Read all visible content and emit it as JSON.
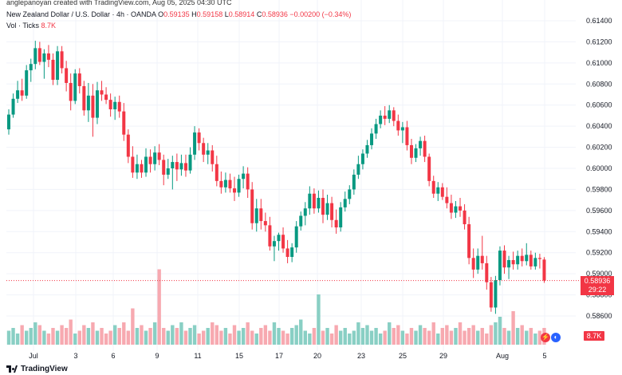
{
  "header": {
    "attribution": "anglepanoyan created with TradingView.com, Aug 05, 2025 04:30 UTC",
    "symbol": "New Zealand Dollar / U.S. Dollar · 4h · OANDA",
    "o_label": "O",
    "o_value": "0.59135",
    "h_label": "H",
    "h_value": "0.59158",
    "l_label": "L",
    "l_value": "0.58914",
    "c_label": "C",
    "c_value": "0.58936",
    "change": "−0.00200 (−0.34%)",
    "vol_label": "Vol · Ticks",
    "vol_value": "8.7K"
  },
  "price_tag": {
    "price": "0.58936",
    "countdown": "29:22"
  },
  "volume_tag": "8.7K",
  "logo_text": "TradingView",
  "colors": {
    "up": "#089981",
    "down": "#f23645",
    "up_vol": "#89cfc4",
    "down_vol": "#f7a9b0",
    "grid": "#f0f3fa"
  },
  "chart_data": {
    "type": "candlestick",
    "y_ticks": [
      "0.61400",
      "0.61200",
      "0.61000",
      "0.60800",
      "0.60600",
      "0.60400",
      "0.60200",
      "0.60000",
      "0.59800",
      "0.59600",
      "0.59400",
      "0.59200",
      "0.59000",
      "0.58800",
      "0.58600"
    ],
    "ylim": [
      0.585,
      0.615
    ],
    "x_tick_labels": [
      "Jul",
      "3",
      "6",
      "9",
      "11",
      "15",
      "17",
      "20",
      "23",
      "25",
      "29",
      "Aug",
      "5"
    ],
    "last_price": 0.58936,
    "candles": [
      {
        "o": 0.6037,
        "h": 0.6056,
        "l": 0.6032,
        "c": 0.6051
      },
      {
        "o": 0.6051,
        "h": 0.6071,
        "l": 0.6048,
        "c": 0.6066
      },
      {
        "o": 0.6066,
        "h": 0.6083,
        "l": 0.6062,
        "c": 0.6074
      },
      {
        "o": 0.6074,
        "h": 0.6085,
        "l": 0.6064,
        "c": 0.6069
      },
      {
        "o": 0.6069,
        "h": 0.6098,
        "l": 0.6066,
        "c": 0.6093
      },
      {
        "o": 0.6093,
        "h": 0.6104,
        "l": 0.6082,
        "c": 0.6099
      },
      {
        "o": 0.6099,
        "h": 0.6121,
        "l": 0.6094,
        "c": 0.6114
      },
      {
        "o": 0.6114,
        "h": 0.612,
        "l": 0.6098,
        "c": 0.6101
      },
      {
        "o": 0.6101,
        "h": 0.6113,
        "l": 0.6085,
        "c": 0.6109
      },
      {
        "o": 0.6109,
        "h": 0.6117,
        "l": 0.6096,
        "c": 0.6103
      },
      {
        "o": 0.6103,
        "h": 0.6109,
        "l": 0.6079,
        "c": 0.6084
      },
      {
        "o": 0.6084,
        "h": 0.6116,
        "l": 0.6079,
        "c": 0.6111
      },
      {
        "o": 0.6111,
        "h": 0.6116,
        "l": 0.609,
        "c": 0.6095
      },
      {
        "o": 0.6095,
        "h": 0.6102,
        "l": 0.6073,
        "c": 0.6081
      },
      {
        "o": 0.6081,
        "h": 0.609,
        "l": 0.6055,
        "c": 0.6064
      },
      {
        "o": 0.6064,
        "h": 0.6094,
        "l": 0.6061,
        "c": 0.609
      },
      {
        "o": 0.609,
        "h": 0.6095,
        "l": 0.6071,
        "c": 0.6078
      },
      {
        "o": 0.6078,
        "h": 0.6083,
        "l": 0.605,
        "c": 0.6055
      },
      {
        "o": 0.6055,
        "h": 0.6081,
        "l": 0.6044,
        "c": 0.6069
      },
      {
        "o": 0.6069,
        "h": 0.608,
        "l": 0.603,
        "c": 0.6048
      },
      {
        "o": 0.6048,
        "h": 0.6082,
        "l": 0.6042,
        "c": 0.6074
      },
      {
        "o": 0.6074,
        "h": 0.6083,
        "l": 0.6064,
        "c": 0.607
      },
      {
        "o": 0.607,
        "h": 0.6077,
        "l": 0.6061,
        "c": 0.6065
      },
      {
        "o": 0.6065,
        "h": 0.6071,
        "l": 0.6049,
        "c": 0.6056
      },
      {
        "o": 0.6056,
        "h": 0.6068,
        "l": 0.6046,
        "c": 0.6063
      },
      {
        "o": 0.6063,
        "h": 0.6069,
        "l": 0.6048,
        "c": 0.6054
      },
      {
        "o": 0.6054,
        "h": 0.6062,
        "l": 0.6026,
        "c": 0.6032
      },
      {
        "o": 0.6032,
        "h": 0.6037,
        "l": 0.6005,
        "c": 0.6011
      },
      {
        "o": 0.6011,
        "h": 0.6021,
        "l": 0.5991,
        "c": 0.5996
      },
      {
        "o": 0.5996,
        "h": 0.6013,
        "l": 0.599,
        "c": 0.6004
      },
      {
        "o": 0.6004,
        "h": 0.6008,
        "l": 0.5991,
        "c": 0.5996
      },
      {
        "o": 0.5996,
        "h": 0.6019,
        "l": 0.5992,
        "c": 0.6011
      },
      {
        "o": 0.6011,
        "h": 0.6018,
        "l": 0.5996,
        "c": 0.6004
      },
      {
        "o": 0.6004,
        "h": 0.6021,
        "l": 0.5998,
        "c": 0.6015
      },
      {
        "o": 0.6015,
        "h": 0.6023,
        "l": 0.6003,
        "c": 0.6008
      },
      {
        "o": 0.6008,
        "h": 0.6013,
        "l": 0.5984,
        "c": 0.5994
      },
      {
        "o": 0.5994,
        "h": 0.6009,
        "l": 0.599,
        "c": 0.6
      },
      {
        "o": 0.6,
        "h": 0.6012,
        "l": 0.598,
        "c": 0.6006
      },
      {
        "o": 0.6006,
        "h": 0.6014,
        "l": 0.5988,
        "c": 0.5999
      },
      {
        "o": 0.5999,
        "h": 0.6013,
        "l": 0.5993,
        "c": 0.6005
      },
      {
        "o": 0.6005,
        "h": 0.6013,
        "l": 0.5992,
        "c": 0.5998
      },
      {
        "o": 0.5998,
        "h": 0.602,
        "l": 0.5995,
        "c": 0.6013
      },
      {
        "o": 0.6013,
        "h": 0.604,
        "l": 0.6008,
        "c": 0.6034
      },
      {
        "o": 0.6034,
        "h": 0.6038,
        "l": 0.6017,
        "c": 0.6024
      },
      {
        "o": 0.6024,
        "h": 0.6029,
        "l": 0.6006,
        "c": 0.6013
      },
      {
        "o": 0.6013,
        "h": 0.6024,
        "l": 0.6004,
        "c": 0.6017
      },
      {
        "o": 0.6017,
        "h": 0.6022,
        "l": 0.5997,
        "c": 0.6004
      },
      {
        "o": 0.6004,
        "h": 0.6012,
        "l": 0.5983,
        "c": 0.5988
      },
      {
        "o": 0.5988,
        "h": 0.5997,
        "l": 0.5976,
        "c": 0.5982
      },
      {
        "o": 0.5982,
        "h": 0.5996,
        "l": 0.5977,
        "c": 0.5989
      },
      {
        "o": 0.5989,
        "h": 0.5995,
        "l": 0.5977,
        "c": 0.5981
      },
      {
        "o": 0.5981,
        "h": 0.5992,
        "l": 0.5969,
        "c": 0.5977
      },
      {
        "o": 0.5977,
        "h": 0.5994,
        "l": 0.5973,
        "c": 0.599
      },
      {
        "o": 0.599,
        "h": 0.6002,
        "l": 0.5981,
        "c": 0.5995
      },
      {
        "o": 0.5995,
        "h": 0.6001,
        "l": 0.5972,
        "c": 0.598
      },
      {
        "o": 0.598,
        "h": 0.5987,
        "l": 0.5942,
        "c": 0.5948
      },
      {
        "o": 0.5948,
        "h": 0.5971,
        "l": 0.594,
        "c": 0.5962
      },
      {
        "o": 0.5962,
        "h": 0.5971,
        "l": 0.5942,
        "c": 0.595
      },
      {
        "o": 0.595,
        "h": 0.5958,
        "l": 0.594,
        "c": 0.5946
      },
      {
        "o": 0.5946,
        "h": 0.5954,
        "l": 0.5922,
        "c": 0.5926
      },
      {
        "o": 0.5926,
        "h": 0.5936,
        "l": 0.5912,
        "c": 0.5931
      },
      {
        "o": 0.5931,
        "h": 0.5939,
        "l": 0.5922,
        "c": 0.5937
      },
      {
        "o": 0.5937,
        "h": 0.5944,
        "l": 0.592,
        "c": 0.5924
      },
      {
        "o": 0.5924,
        "h": 0.5932,
        "l": 0.591,
        "c": 0.5916
      },
      {
        "o": 0.5916,
        "h": 0.5929,
        "l": 0.5911,
        "c": 0.5925
      },
      {
        "o": 0.5925,
        "h": 0.595,
        "l": 0.592,
        "c": 0.5945
      },
      {
        "o": 0.5945,
        "h": 0.5959,
        "l": 0.5941,
        "c": 0.5955
      },
      {
        "o": 0.5955,
        "h": 0.5968,
        "l": 0.5946,
        "c": 0.5962
      },
      {
        "o": 0.5962,
        "h": 0.5983,
        "l": 0.5956,
        "c": 0.5976
      },
      {
        "o": 0.5976,
        "h": 0.5981,
        "l": 0.5957,
        "c": 0.5962
      },
      {
        "o": 0.5962,
        "h": 0.5979,
        "l": 0.5958,
        "c": 0.5972
      },
      {
        "o": 0.5972,
        "h": 0.598,
        "l": 0.5948,
        "c": 0.5956
      },
      {
        "o": 0.5956,
        "h": 0.5975,
        "l": 0.5951,
        "c": 0.5967
      },
      {
        "o": 0.5967,
        "h": 0.5973,
        "l": 0.5944,
        "c": 0.5951
      },
      {
        "o": 0.5951,
        "h": 0.5961,
        "l": 0.5938,
        "c": 0.5944
      },
      {
        "o": 0.5944,
        "h": 0.5968,
        "l": 0.594,
        "c": 0.5963
      },
      {
        "o": 0.5963,
        "h": 0.5978,
        "l": 0.5959,
        "c": 0.5971
      },
      {
        "o": 0.5971,
        "h": 0.5984,
        "l": 0.5966,
        "c": 0.598
      },
      {
        "o": 0.598,
        "h": 0.5999,
        "l": 0.5975,
        "c": 0.5994
      },
      {
        "o": 0.5994,
        "h": 0.6012,
        "l": 0.599,
        "c": 0.6004
      },
      {
        "o": 0.6004,
        "h": 0.6018,
        "l": 0.5999,
        "c": 0.6014
      },
      {
        "o": 0.6014,
        "h": 0.6027,
        "l": 0.601,
        "c": 0.6022
      },
      {
        "o": 0.6022,
        "h": 0.6038,
        "l": 0.6018,
        "c": 0.6033
      },
      {
        "o": 0.6033,
        "h": 0.6047,
        "l": 0.6028,
        "c": 0.6042
      },
      {
        "o": 0.6042,
        "h": 0.6055,
        "l": 0.6038,
        "c": 0.605
      },
      {
        "o": 0.605,
        "h": 0.6059,
        "l": 0.6041,
        "c": 0.6047
      },
      {
        "o": 0.6047,
        "h": 0.606,
        "l": 0.6043,
        "c": 0.6055
      },
      {
        "o": 0.6055,
        "h": 0.6058,
        "l": 0.604,
        "c": 0.6045
      },
      {
        "o": 0.6045,
        "h": 0.6051,
        "l": 0.6031,
        "c": 0.6036
      },
      {
        "o": 0.6036,
        "h": 0.6044,
        "l": 0.6024,
        "c": 0.6039
      },
      {
        "o": 0.6039,
        "h": 0.6045,
        "l": 0.6017,
        "c": 0.6022
      },
      {
        "o": 0.6022,
        "h": 0.6028,
        "l": 0.6004,
        "c": 0.601
      },
      {
        "o": 0.601,
        "h": 0.6023,
        "l": 0.6006,
        "c": 0.6019
      },
      {
        "o": 0.6019,
        "h": 0.603,
        "l": 0.6012,
        "c": 0.6026
      },
      {
        "o": 0.6026,
        "h": 0.6031,
        "l": 0.6006,
        "c": 0.6011
      },
      {
        "o": 0.6011,
        "h": 0.6014,
        "l": 0.5983,
        "c": 0.5988
      },
      {
        "o": 0.5988,
        "h": 0.5993,
        "l": 0.5972,
        "c": 0.5976
      },
      {
        "o": 0.5976,
        "h": 0.5987,
        "l": 0.5969,
        "c": 0.5982
      },
      {
        "o": 0.5982,
        "h": 0.5986,
        "l": 0.597,
        "c": 0.5973
      },
      {
        "o": 0.5973,
        "h": 0.5982,
        "l": 0.5962,
        "c": 0.5967
      },
      {
        "o": 0.5967,
        "h": 0.5975,
        "l": 0.5952,
        "c": 0.5958
      },
      {
        "o": 0.5958,
        "h": 0.5969,
        "l": 0.5953,
        "c": 0.5964
      },
      {
        "o": 0.5964,
        "h": 0.5972,
        "l": 0.5954,
        "c": 0.596
      },
      {
        "o": 0.596,
        "h": 0.5966,
        "l": 0.5942,
        "c": 0.5947
      },
      {
        "o": 0.5947,
        "h": 0.5954,
        "l": 0.5909,
        "c": 0.5915
      },
      {
        "o": 0.5915,
        "h": 0.5924,
        "l": 0.5896,
        "c": 0.5904
      },
      {
        "o": 0.5904,
        "h": 0.5924,
        "l": 0.59,
        "c": 0.5917
      },
      {
        "o": 0.5917,
        "h": 0.5936,
        "l": 0.5904,
        "c": 0.591
      },
      {
        "o": 0.591,
        "h": 0.5917,
        "l": 0.5885,
        "c": 0.5892
      },
      {
        "o": 0.5892,
        "h": 0.5897,
        "l": 0.5864,
        "c": 0.5868
      },
      {
        "o": 0.5868,
        "h": 0.5898,
        "l": 0.5862,
        "c": 0.5894
      },
      {
        "o": 0.5894,
        "h": 0.5926,
        "l": 0.5889,
        "c": 0.5922
      },
      {
        "o": 0.5922,
        "h": 0.5927,
        "l": 0.59,
        "c": 0.5906
      },
      {
        "o": 0.5906,
        "h": 0.5917,
        "l": 0.5895,
        "c": 0.5913
      },
      {
        "o": 0.5913,
        "h": 0.5921,
        "l": 0.5904,
        "c": 0.5909
      },
      {
        "o": 0.5909,
        "h": 0.5922,
        "l": 0.5904,
        "c": 0.5917
      },
      {
        "o": 0.5917,
        "h": 0.5924,
        "l": 0.5907,
        "c": 0.5912
      },
      {
        "o": 0.5912,
        "h": 0.5929,
        "l": 0.5908,
        "c": 0.5918
      },
      {
        "o": 0.5918,
        "h": 0.5922,
        "l": 0.5904,
        "c": 0.5907
      },
      {
        "o": 0.5907,
        "h": 0.592,
        "l": 0.5904,
        "c": 0.5915
      },
      {
        "o": 0.5915,
        "h": 0.5919,
        "l": 0.5905,
        "c": 0.5914
      },
      {
        "o": 0.59135,
        "h": 0.59158,
        "l": 0.58914,
        "c": 0.58936
      }
    ],
    "volume": [
      5,
      6,
      4,
      7,
      5,
      6,
      8,
      7,
      5,
      4,
      6,
      5,
      7,
      6,
      9,
      4,
      5,
      7,
      6,
      8,
      5,
      6,
      4,
      5,
      7,
      6,
      8,
      5,
      13,
      6,
      7,
      5,
      6,
      8,
      27,
      6,
      5,
      7,
      6,
      8,
      5,
      6,
      7,
      4,
      5,
      6,
      8,
      7,
      5,
      6,
      4,
      7,
      5,
      6,
      8,
      5,
      4,
      6,
      7,
      5,
      8,
      6,
      5,
      4,
      6,
      7,
      9,
      5,
      4,
      6,
      18,
      5,
      6,
      4,
      7,
      5,
      6,
      4,
      5,
      8,
      6,
      7,
      5,
      6,
      4,
      5,
      8,
      6,
      7,
      5,
      4,
      6,
      5,
      7,
      6,
      5,
      8,
      4,
      6,
      7,
      5,
      6,
      8,
      5,
      6,
      7,
      5,
      6,
      4,
      7,
      8,
      10,
      6,
      5,
      12,
      6,
      7,
      5,
      6,
      4,
      5,
      6
    ],
    "volume_max": 30
  }
}
